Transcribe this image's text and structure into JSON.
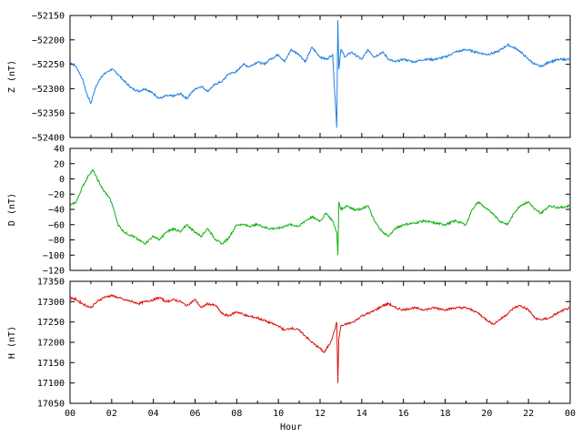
{
  "chart_data": [
    {
      "type": "line",
      "ylabel": "Z (nT)",
      "ylim": [
        -52400,
        -52150
      ],
      "yticks": [
        -52150,
        -52200,
        -52250,
        -52300,
        -52350,
        -52400
      ],
      "color": "#1f7fe0",
      "series": [
        {
          "x": [
            0,
            0.3,
            0.6,
            0.8,
            1.0,
            1.2,
            1.5,
            1.8,
            2.0,
            2.3,
            2.6,
            3.0,
            3.3,
            3.6,
            4.0,
            4.3,
            4.6,
            5.0,
            5.3,
            5.6,
            6.0,
            6.3,
            6.6,
            7.0,
            7.3,
            7.6,
            8.0,
            8.3,
            8.6,
            9.0,
            9.3,
            9.6,
            10.0,
            10.3,
            10.6,
            11.0,
            11.3,
            11.6,
            12.0,
            12.3,
            12.6,
            12.8,
            12.85,
            12.9,
            13.0,
            13.2,
            13.5,
            14.0,
            14.3,
            14.6,
            15.0,
            15.3,
            15.6,
            16.0,
            16.5,
            17.0,
            17.5,
            18.0,
            18.5,
            19.0,
            19.5,
            20.0,
            20.5,
            21.0,
            21.5,
            22.0,
            22.3,
            22.6,
            23.0,
            23.5,
            24.0
          ],
          "values": [
            -52245,
            -52255,
            -52280,
            -52310,
            -52330,
            -52300,
            -52275,
            -52265,
            -52260,
            -52270,
            -52285,
            -52300,
            -52305,
            -52300,
            -52310,
            -52320,
            -52315,
            -52315,
            -52310,
            -52320,
            -52300,
            -52295,
            -52305,
            -52290,
            -52285,
            -52270,
            -52265,
            -52250,
            -52255,
            -52245,
            -52250,
            -52240,
            -52230,
            -52245,
            -52220,
            -52230,
            -52245,
            -52215,
            -52235,
            -52240,
            -52230,
            -52380,
            -52160,
            -52260,
            -52220,
            -52235,
            -52225,
            -52240,
            -52220,
            -52235,
            -52225,
            -52240,
            -52245,
            -52240,
            -52245,
            -52240,
            -52240,
            -52235,
            -52225,
            -52220,
            -52225,
            -52230,
            -52225,
            -52210,
            -52220,
            -52240,
            -52250,
            -52255,
            -52245,
            -52240,
            -52240
          ]
        }
      ]
    },
    {
      "type": "line",
      "ylabel": "D (nT)",
      "ylim": [
        -120,
        40
      ],
      "yticks": [
        40,
        20,
        0,
        -20,
        -40,
        -60,
        -80,
        -100,
        -120
      ],
      "color": "#10b010",
      "series": [
        {
          "x": [
            0,
            0.3,
            0.6,
            0.9,
            1.1,
            1.3,
            1.6,
            1.9,
            2.1,
            2.3,
            2.6,
            3.0,
            3.3,
            3.6,
            4.0,
            4.3,
            4.6,
            5.0,
            5.3,
            5.6,
            6.0,
            6.3,
            6.6,
            7.0,
            7.3,
            7.6,
            8.0,
            8.3,
            8.6,
            9.0,
            9.5,
            10.0,
            10.5,
            11.0,
            11.3,
            11.6,
            12.0,
            12.3,
            12.6,
            12.8,
            12.85,
            12.9,
            13.0,
            13.3,
            13.6,
            14.0,
            14.3,
            14.6,
            15.0,
            15.3,
            15.6,
            16.0,
            16.5,
            17.0,
            17.5,
            18.0,
            18.5,
            19.0,
            19.3,
            19.6,
            20.0,
            20.3,
            20.6,
            21.0,
            21.3,
            21.6,
            22.0,
            22.3,
            22.6,
            23.0,
            23.5,
            24.0
          ],
          "values": [
            -35,
            -30,
            -10,
            5,
            12,
            0,
            -15,
            -25,
            -40,
            -60,
            -70,
            -75,
            -80,
            -85,
            -75,
            -80,
            -70,
            -65,
            -70,
            -60,
            -70,
            -75,
            -65,
            -80,
            -85,
            -78,
            -60,
            -60,
            -62,
            -60,
            -65,
            -65,
            -60,
            -62,
            -55,
            -50,
            -55,
            -45,
            -55,
            -70,
            -100,
            -30,
            -40,
            -35,
            -40,
            -40,
            -35,
            -55,
            -70,
            -75,
            -65,
            -60,
            -58,
            -55,
            -58,
            -60,
            -55,
            -60,
            -40,
            -30,
            -40,
            -45,
            -55,
            -60,
            -45,
            -35,
            -30,
            -40,
            -45,
            -35,
            -38,
            -35
          ]
        }
      ]
    },
    {
      "type": "line",
      "ylabel": "H (nT)",
      "ylim": [
        17050,
        17350
      ],
      "yticks": [
        17350,
        17300,
        17250,
        17200,
        17150,
        17100,
        17050
      ],
      "color": "#e01010",
      "series": [
        {
          "x": [
            0,
            0.3,
            0.6,
            1.0,
            1.3,
            1.6,
            2.0,
            2.3,
            2.6,
            3.0,
            3.3,
            3.6,
            4.0,
            4.3,
            4.6,
            5.0,
            5.3,
            5.6,
            6.0,
            6.3,
            6.6,
            7.0,
            7.3,
            7.6,
            8.0,
            8.5,
            9.0,
            9.5,
            10.0,
            10.3,
            10.6,
            11.0,
            11.3,
            11.6,
            12.0,
            12.2,
            12.5,
            12.7,
            12.8,
            12.85,
            12.9,
            13.0,
            13.3,
            13.6,
            14.0,
            14.5,
            15.0,
            15.3,
            15.6,
            16.0,
            16.5,
            17.0,
            17.5,
            18.0,
            18.5,
            19.0,
            19.5,
            20.0,
            20.3,
            20.6,
            21.0,
            21.3,
            21.6,
            22.0,
            22.3,
            22.6,
            23.0,
            23.5,
            24.0
          ],
          "values": [
            17310,
            17305,
            17295,
            17285,
            17300,
            17310,
            17315,
            17310,
            17305,
            17300,
            17295,
            17300,
            17305,
            17310,
            17300,
            17305,
            17300,
            17290,
            17305,
            17285,
            17295,
            17290,
            17270,
            17265,
            17275,
            17265,
            17260,
            17250,
            17240,
            17230,
            17235,
            17230,
            17215,
            17200,
            17185,
            17175,
            17200,
            17230,
            17250,
            17100,
            17210,
            17240,
            17245,
            17250,
            17265,
            17275,
            17290,
            17295,
            17285,
            17280,
            17285,
            17280,
            17285,
            17280,
            17285,
            17285,
            17275,
            17255,
            17245,
            17255,
            17270,
            17285,
            17290,
            17280,
            17260,
            17255,
            17260,
            17275,
            17285
          ]
        }
      ]
    }
  ],
  "xaxis": {
    "label": "Hour",
    "ticks": [
      "00",
      "02",
      "04",
      "06",
      "08",
      "10",
      "12",
      "14",
      "16",
      "18",
      "20",
      "22",
      "00"
    ],
    "xlim": [
      0,
      24
    ]
  }
}
